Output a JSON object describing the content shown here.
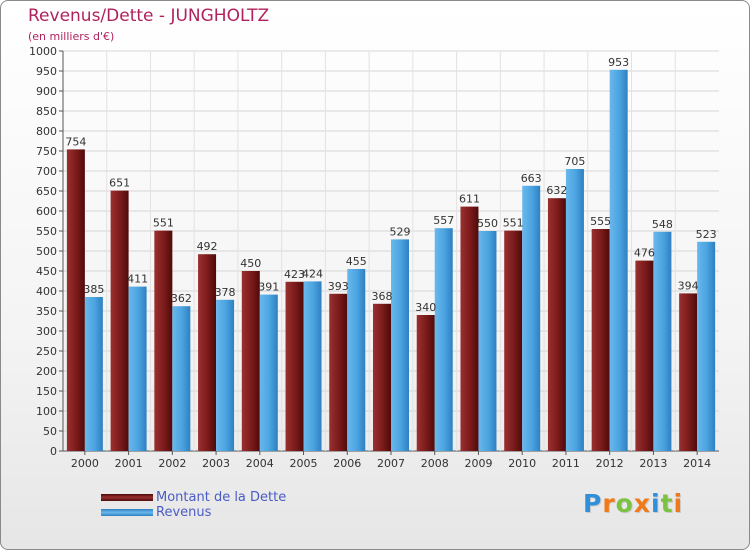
{
  "header": {
    "title": "Revenus/Dette - JUNGHOLTZ",
    "subtitle": "(en milliers d'€)"
  },
  "colors": {
    "debt": "#7a1a1a",
    "revenue": "#4aa3e0",
    "title": "#b0225d",
    "legend_text": "#4a5cc4"
  },
  "legend": {
    "debt_label": "Montant de la Dette",
    "revenue_label": "Revenus"
  },
  "logo": {
    "text": "Proxiti",
    "letters": [
      {
        "ch": "P",
        "color": "#2f8fd8"
      },
      {
        "ch": "r",
        "color": "#f07a1a"
      },
      {
        "ch": "o",
        "color": "#7cc242"
      },
      {
        "ch": "x",
        "color": "#f07a1a"
      },
      {
        "ch": "i",
        "color": "#2f8fd8"
      },
      {
        "ch": "t",
        "color": "#7cc242"
      },
      {
        "ch": "i",
        "color": "#f07a1a"
      }
    ]
  },
  "chart_data": {
    "type": "bar",
    "title": "Revenus/Dette - JUNGHOLTZ",
    "subtitle": "(en milliers d'€)",
    "xlabel": "",
    "ylabel": "",
    "ylim": [
      0,
      1000
    ],
    "ytick_step": 50,
    "grid": true,
    "legend_position": "bottom-left",
    "categories": [
      "2000",
      "2001",
      "2002",
      "2003",
      "2004",
      "2005",
      "2006",
      "2007",
      "2008",
      "2009",
      "2010",
      "2011",
      "2012",
      "2013",
      "2014"
    ],
    "series": [
      {
        "name": "Montant de la Dette",
        "values": [
          754,
          651,
          551,
          492,
          450,
          423,
          393,
          368,
          340,
          611,
          551,
          632,
          555,
          476,
          394
        ]
      },
      {
        "name": "Revenus",
        "values": [
          385,
          411,
          362,
          378,
          391,
          424,
          455,
          529,
          557,
          550,
          663,
          705,
          953,
          548,
          523
        ]
      }
    ]
  }
}
